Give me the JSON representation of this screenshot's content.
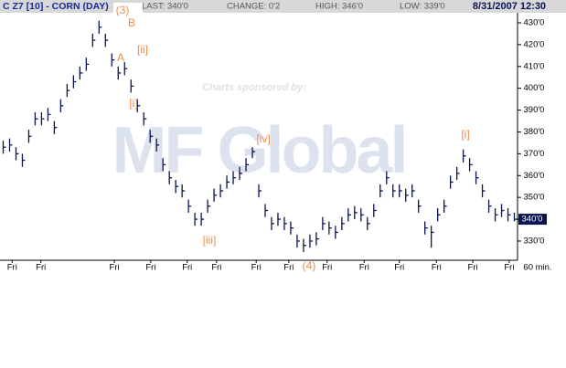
{
  "chart_data": {
    "type": "hlc",
    "symbol": "C Z7 [10] - CORN (DAY)",
    "info": [
      "LAST: 340'0",
      "CHANGE: 0'2",
      "HIGH: 346'0",
      "LOW: 339'0"
    ],
    "datetime": "8/31/2007 12:30",
    "watermark": [
      "Charts sponsored by:",
      "MF Global"
    ],
    "color": "#0a1450",
    "annotation_color": "#f08a4b",
    "annotations": [
      "(3)",
      "B",
      "A",
      "[ii]",
      "[i]",
      "[iv]",
      "[iii]",
      "(4)",
      "[i]"
    ],
    "high": [
      376,
      377,
      373,
      370,
      381,
      389,
      389,
      391,
      385,
      395,
      402,
      406,
      410,
      414,
      425,
      431,
      425,
      416,
      410,
      412,
      404,
      395,
      389,
      381,
      377,
      368,
      362,
      358,
      356,
      349,
      343,
      343,
      349,
      354,
      356,
      360,
      362,
      364,
      368,
      373,
      356,
      347,
      341,
      343,
      341,
      339,
      333,
      331,
      333,
      334,
      341,
      339,
      337,
      341,
      345,
      346,
      345,
      341,
      347,
      356,
      362,
      356,
      356,
      354,
      356,
      349,
      339,
      337,
      345,
      349,
      360,
      364,
      372,
      368,
      362,
      356,
      349,
      345,
      347,
      345,
      343
    ],
    "low": [
      370,
      371,
      367,
      364,
      375,
      383,
      383,
      385,
      379,
      389,
      396,
      400,
      404,
      408,
      419,
      425,
      419,
      410,
      404,
      406,
      398,
      389,
      383,
      375,
      371,
      362,
      356,
      352,
      350,
      343,
      337,
      337,
      343,
      348,
      350,
      354,
      356,
      358,
      362,
      368,
      350,
      341,
      335,
      337,
      335,
      333,
      327,
      325,
      327,
      328,
      335,
      333,
      331,
      335,
      339,
      340,
      339,
      335,
      341,
      350,
      356,
      350,
      350,
      348,
      350,
      343,
      333,
      327,
      339,
      343,
      354,
      358,
      366,
      362,
      356,
      350,
      343,
      339,
      341,
      339,
      339
    ],
    "close": [
      373,
      374,
      370,
      367,
      378,
      386,
      386,
      388,
      382,
      392,
      399,
      403,
      407,
      411,
      422,
      428,
      422,
      413,
      407,
      409,
      401,
      392,
      386,
      378,
      374,
      365,
      359,
      355,
      353,
      346,
      340,
      340,
      346,
      351,
      353,
      357,
      359,
      361,
      365,
      371,
      353,
      344,
      338,
      340,
      338,
      336,
      330,
      328,
      330,
      331,
      338,
      336,
      334,
      338,
      342,
      343,
      342,
      338,
      344,
      353,
      359,
      353,
      353,
      351,
      353,
      346,
      336,
      334,
      342,
      346,
      357,
      361,
      369,
      365,
      359,
      353,
      346,
      342,
      344,
      342,
      340
    ],
    "last_price": {
      "value": 340,
      "label": "340'0"
    },
    "xlim": [
      -0.5,
      80.5
    ],
    "xticks": [
      {
        "value": 1.4,
        "label": "Fri"
      },
      {
        "value": 5.9,
        "label": "Fri"
      },
      {
        "value": 17.4,
        "label": "Fri"
      },
      {
        "value": 23.1,
        "label": "Fri"
      },
      {
        "value": 28.8,
        "label": "Fri"
      },
      {
        "value": 33.4,
        "label": "Fri"
      },
      {
        "value": 39.6,
        "label": "Fri"
      },
      {
        "value": 44.7,
        "label": "Fri"
      },
      {
        "value": 50.7,
        "label": "Fri"
      },
      {
        "value": 56.5,
        "label": "Fri"
      },
      {
        "value": 62.0,
        "label": "Fri"
      },
      {
        "value": 67.8,
        "label": "Fri"
      },
      {
        "value": 73.5,
        "label": "Fri"
      },
      {
        "value": 79.2,
        "label": "Fri"
      }
    ],
    "xlabel": "60 min.",
    "ylim": [
      321.2,
      434.6
    ],
    "yticks": [
      {
        "value": 330,
        "label": "330'0"
      },
      {
        "value": 340,
        "label": "340'0"
      },
      {
        "value": 350,
        "label": "350'0"
      },
      {
        "value": 360,
        "label": "360'0"
      },
      {
        "value": 370,
        "label": "370'0"
      },
      {
        "value": 380,
        "label": "380'0"
      },
      {
        "value": 390,
        "label": "390'0"
      },
      {
        "value": 400,
        "label": "400'0"
      },
      {
        "value": 410,
        "label": "410'0"
      },
      {
        "value": 420,
        "label": "420'0"
      },
      {
        "value": 430,
        "label": "430'0"
      }
    ]
  }
}
